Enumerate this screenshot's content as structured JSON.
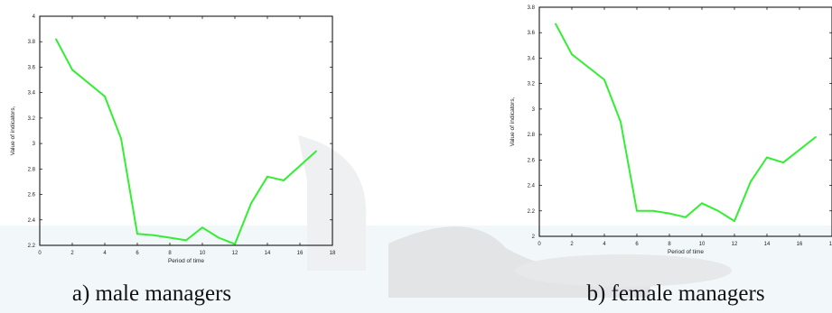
{
  "chart_data": [
    {
      "type": "line",
      "caption": "a) male managers",
      "xlabel": "Period of time",
      "ylabel": "Value of indicators,",
      "xlim": [
        0,
        18
      ],
      "ylim": [
        2.2,
        4
      ],
      "xticks": [
        "0",
        "2",
        "4",
        "6",
        "8",
        "10",
        "12",
        "14",
        "16",
        "18"
      ],
      "yticks": [
        "2.2",
        "2.4",
        "2.6",
        "2.8",
        "3",
        "3.2",
        "3.4",
        "3.6",
        "3.8",
        "4"
      ],
      "line_color": "#33ee33",
      "x": [
        1,
        2,
        4,
        5,
        6,
        7,
        8,
        9,
        10,
        11,
        12,
        13,
        14,
        15,
        17
      ],
      "y": [
        3.82,
        3.58,
        3.37,
        3.04,
        2.29,
        2.28,
        2.26,
        2.24,
        2.34,
        2.26,
        2.21,
        2.53,
        2.74,
        2.71,
        2.94
      ]
    },
    {
      "type": "line",
      "caption": "b) female managers",
      "xlabel": "Period of time",
      "ylabel": "Value of indicators,",
      "xlim": [
        0,
        18
      ],
      "ylim": [
        2,
        3.8
      ],
      "xticks": [
        "0",
        "2",
        "4",
        "6",
        "8",
        "10",
        "12",
        "14",
        "16",
        "18"
      ],
      "yticks": [
        "2",
        "2.2",
        "2.4",
        "2.6",
        "2.8",
        "3",
        "3.2",
        "3.4",
        "3.6",
        "3.8"
      ],
      "line_color": "#33ee33",
      "x": [
        1,
        2,
        4,
        5,
        6,
        7,
        8,
        9,
        10,
        11,
        12,
        13,
        14,
        15,
        17
      ],
      "y": [
        3.67,
        3.43,
        3.23,
        2.9,
        2.2,
        2.2,
        2.18,
        2.15,
        2.26,
        2.2,
        2.12,
        2.43,
        2.62,
        2.58,
        2.78
      ]
    }
  ]
}
